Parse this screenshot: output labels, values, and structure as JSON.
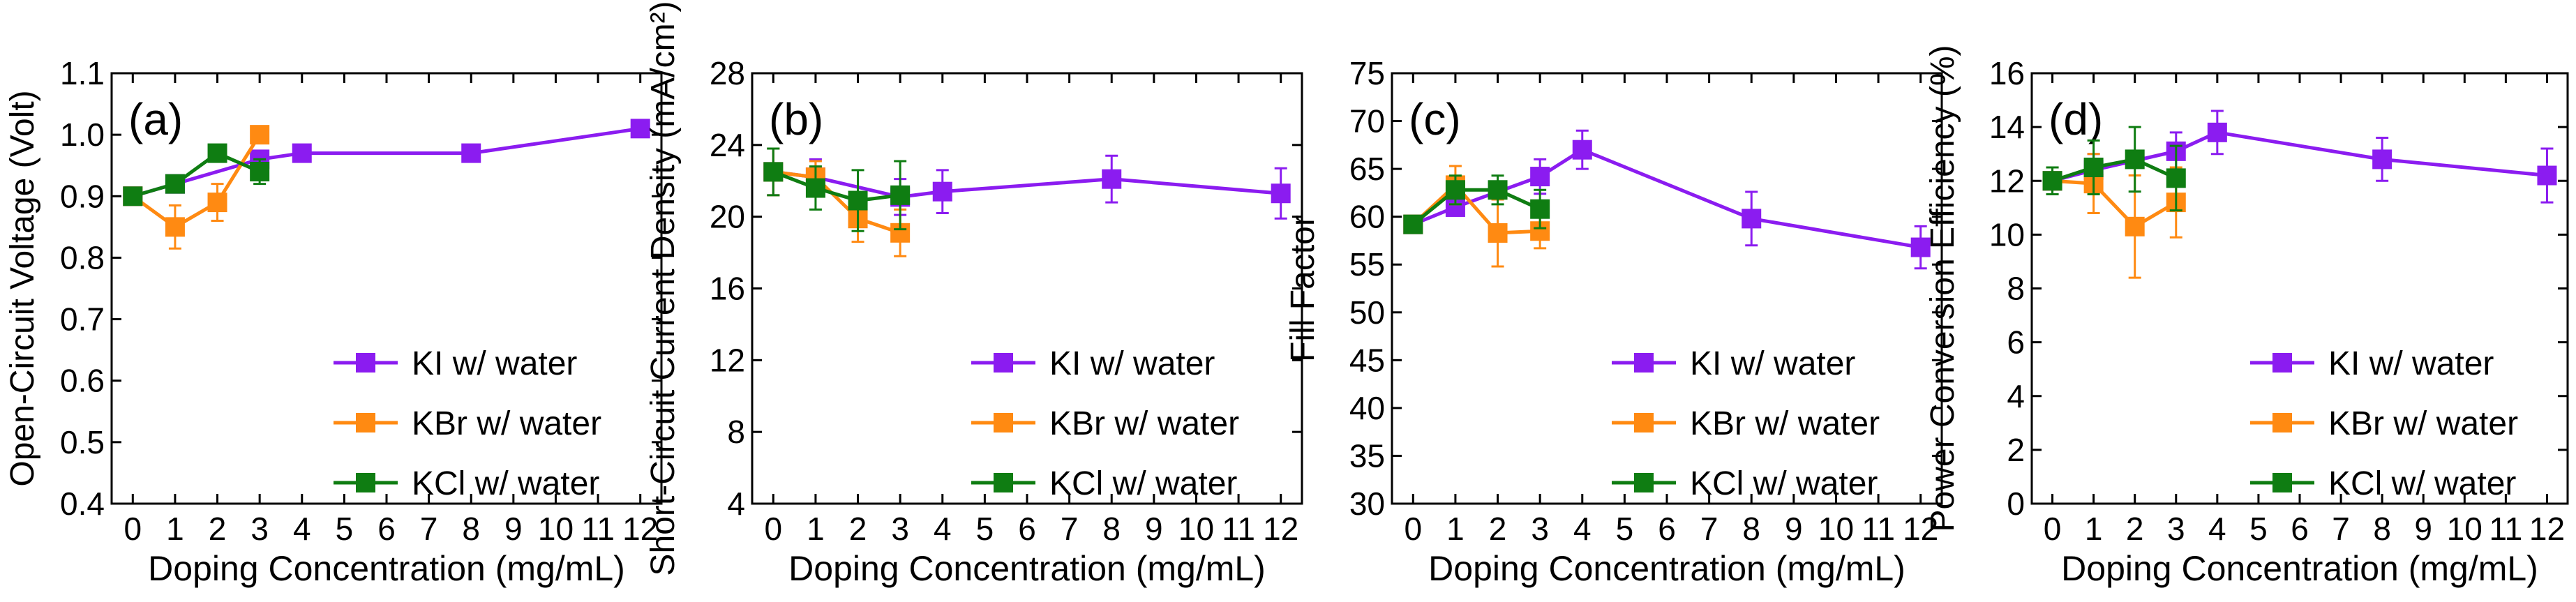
{
  "figure": {
    "description_label": "Effect of potassium halide doping concentration on solar cell parameters"
  },
  "colors": {
    "KI": "#8b1cf0",
    "KBr": "#ff8a12",
    "KCl": "#0f7d12",
    "axis": "#000000"
  },
  "chart_data": [
    {
      "type": "line",
      "panel_label": "(a)",
      "xlabel": "Doping Concentration (mg/mL)",
      "ylabel": "Open-Circuit Voltage (Volt)",
      "xlim": [
        -0.5,
        12.5
      ],
      "ylim": [
        0.4,
        1.1
      ],
      "xticks": [
        0,
        1,
        2,
        3,
        4,
        5,
        6,
        7,
        8,
        9,
        10,
        11,
        12
      ],
      "xticklabels": [
        "0",
        "1",
        "2",
        "3",
        "4",
        "5",
        "6",
        "7",
        "8",
        "9",
        "10",
        "11",
        "12"
      ],
      "yticks": [
        0.4,
        0.5,
        0.6,
        0.7,
        0.8,
        0.9,
        1.0,
        1.1
      ],
      "yticklabels": [
        "0.4",
        "0.5",
        "0.6",
        "0.7",
        "0.8",
        "0.9",
        "1.0",
        "1.1"
      ],
      "series": [
        {
          "name": "KI   w/ water",
          "key": "KI",
          "x": [
            0,
            1,
            3,
            4,
            8,
            12
          ],
          "values": [
            0.9,
            0.92,
            0.96,
            0.97,
            0.97,
            1.01
          ],
          "errors": [
            0,
            0,
            0,
            0,
            0,
            0
          ]
        },
        {
          "name": "KBr w/ water",
          "key": "KBr",
          "x": [
            0,
            1,
            2,
            3
          ],
          "values": [
            0.9,
            0.85,
            0.89,
            1.0
          ],
          "errors": [
            0,
            0.035,
            0.03,
            0
          ]
        },
        {
          "name": "KCl w/ water",
          "key": "KCl",
          "x": [
            0,
            1,
            2,
            3
          ],
          "values": [
            0.9,
            0.92,
            0.97,
            0.94
          ],
          "errors": [
            0,
            0,
            0,
            0.02
          ]
        }
      ]
    },
    {
      "type": "line",
      "panel_label": "(b)",
      "xlabel": "Doping Concentration (mg/mL)",
      "ylabel": "Short-Circuit Current Density (mA/cm²)",
      "xlim": [
        -0.5,
        12.5
      ],
      "ylim": [
        4,
        28
      ],
      "xticks": [
        0,
        1,
        2,
        3,
        4,
        5,
        6,
        7,
        8,
        9,
        10,
        11,
        12
      ],
      "xticklabels": [
        "0",
        "1",
        "2",
        "3",
        "4",
        "5",
        "6",
        "7",
        "8",
        "9",
        "10",
        "11",
        "12"
      ],
      "yticks": [
        4,
        8,
        12,
        16,
        20,
        24,
        28
      ],
      "yticklabels": [
        "4",
        "8",
        "12",
        "16",
        "20",
        "24",
        "28"
      ],
      "series": [
        {
          "name": "KI   w/ water",
          "key": "KI",
          "x": [
            0,
            1,
            3,
            4,
            8,
            12
          ],
          "values": [
            22.5,
            22.2,
            21.1,
            21.4,
            22.1,
            21.3
          ],
          "errors": [
            1.3,
            1.0,
            1.0,
            1.2,
            1.3,
            1.4
          ]
        },
        {
          "name": "KBr w/ water",
          "key": "KBr",
          "x": [
            0,
            1,
            2,
            3
          ],
          "values": [
            22.5,
            22.2,
            19.9,
            19.1
          ],
          "errors": [
            1.3,
            0.9,
            1.3,
            1.3
          ]
        },
        {
          "name": "KCl w/ water",
          "key": "KCl",
          "x": [
            0,
            1,
            2,
            3
          ],
          "values": [
            22.5,
            21.6,
            20.9,
            21.2
          ],
          "errors": [
            1.3,
            1.2,
            1.7,
            1.9
          ]
        }
      ]
    },
    {
      "type": "line",
      "panel_label": "(c)",
      "xlabel": "Doping Concentration (mg/mL)",
      "ylabel": "Fill Factor",
      "xlim": [
        -0.5,
        12.5
      ],
      "ylim": [
        30,
        75
      ],
      "xticks": [
        0,
        1,
        2,
        3,
        4,
        5,
        6,
        7,
        8,
        9,
        10,
        11,
        12
      ],
      "xticklabels": [
        "0",
        "1",
        "2",
        "3",
        "4",
        "5",
        "6",
        "7",
        "8",
        "9",
        "10",
        "11",
        "12"
      ],
      "yticks": [
        30,
        35,
        40,
        45,
        50,
        55,
        60,
        65,
        70,
        75
      ],
      "yticklabels": [
        "30",
        "35",
        "40",
        "45",
        "50",
        "55",
        "60",
        "65",
        "70",
        "75"
      ],
      "series": [
        {
          "name": "KI   w/ water",
          "key": "KI",
          "x": [
            0,
            1,
            3,
            4,
            8,
            12
          ],
          "values": [
            59.2,
            61.0,
            64.2,
            67.0,
            59.8,
            56.8
          ],
          "errors": [
            0,
            0,
            1.8,
            2.0,
            2.8,
            2.2
          ]
        },
        {
          "name": "KBr w/ water",
          "key": "KBr",
          "x": [
            0,
            1,
            2,
            3
          ],
          "values": [
            59.2,
            63.3,
            58.3,
            58.5
          ],
          "errors": [
            0,
            2.0,
            3.5,
            1.8
          ]
        },
        {
          "name": "KCl w/ water",
          "key": "KCl",
          "x": [
            0,
            1,
            2,
            3
          ],
          "values": [
            59.2,
            62.8,
            62.8,
            60.8
          ],
          "errors": [
            0,
            1.5,
            1.5,
            2.0
          ]
        }
      ]
    },
    {
      "type": "line",
      "panel_label": "(d)",
      "xlabel": "Doping Concentration (mg/mL)",
      "ylabel": "Power Conversion Efficiency (%)",
      "xlim": [
        -0.5,
        12.5
      ],
      "ylim": [
        0,
        16
      ],
      "xticks": [
        0,
        1,
        2,
        3,
        4,
        5,
        6,
        7,
        8,
        9,
        10,
        11,
        12
      ],
      "xticklabels": [
        "0",
        "1",
        "2",
        "3",
        "4",
        "5",
        "6",
        "7",
        "8",
        "9",
        "10",
        "11",
        "12"
      ],
      "yticks": [
        0,
        2,
        4,
        6,
        8,
        10,
        12,
        14,
        16
      ],
      "yticklabels": [
        "0",
        "2",
        "4",
        "6",
        "8",
        "10",
        "12",
        "14",
        "16"
      ],
      "series": [
        {
          "name": "KI   w/ water",
          "key": "KI",
          "x": [
            0,
            1,
            3,
            4,
            8,
            12
          ],
          "values": [
            12.0,
            12.4,
            13.1,
            13.8,
            12.8,
            12.2
          ],
          "errors": [
            0.5,
            0.6,
            0.7,
            0.8,
            0.8,
            1.0
          ]
        },
        {
          "name": "KBr w/ water",
          "key": "KBr",
          "x": [
            0,
            1,
            2,
            3
          ],
          "values": [
            12.0,
            11.9,
            10.3,
            11.2
          ],
          "errors": [
            0.5,
            1.1,
            1.9,
            1.3
          ]
        },
        {
          "name": "KCl w/ water",
          "key": "KCl",
          "x": [
            0,
            1,
            2,
            3
          ],
          "values": [
            12.0,
            12.5,
            12.8,
            12.1
          ],
          "errors": [
            0.5,
            1.0,
            1.2,
            1.2
          ]
        }
      ]
    }
  ]
}
